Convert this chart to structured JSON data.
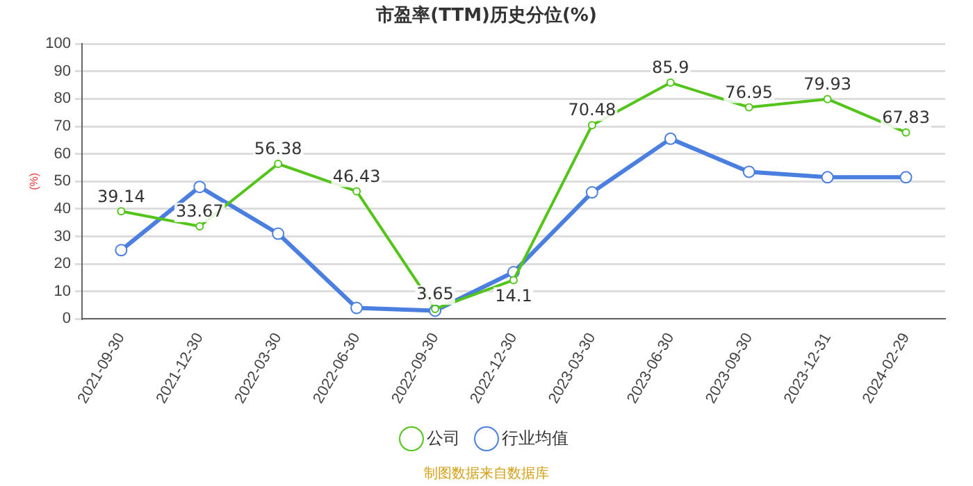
{
  "chart_data": {
    "type": "line",
    "title": "市盈率(TTM)历史分位(%)",
    "ylabel": "(%)",
    "categories": [
      "2021-09-30",
      "2021-12-30",
      "2022-03-30",
      "2022-06-30",
      "2022-09-30",
      "2022-12-30",
      "2023-03-30",
      "2023-06-30",
      "2023-09-30",
      "2023-12-31",
      "2024-02-29"
    ],
    "series": [
      {
        "name": "公司",
        "color": "#52c41a",
        "values": [
          39.14,
          33.67,
          56.38,
          46.43,
          3.65,
          14.1,
          70.48,
          85.9,
          76.95,
          79.93,
          67.83
        ],
        "value_labels": [
          "39.14",
          "33.67",
          "56.38",
          "46.43",
          "3.65",
          "14.1",
          "70.48",
          "85.9",
          "76.95",
          "79.93",
          "67.83"
        ]
      },
      {
        "name": "行业均值",
        "color": "#4a7fe0",
        "values": [
          25,
          48,
          31,
          4,
          3,
          17,
          46,
          65.5,
          53.5,
          51.5,
          51.5
        ]
      }
    ],
    "ylim": [
      0,
      100
    ],
    "yticks": [
      0,
      10,
      20,
      30,
      40,
      50,
      60,
      70,
      80,
      90,
      100
    ],
    "grid": "y",
    "legend": "bottom",
    "marker": "circle",
    "line_style": "solid",
    "annotations": [
      "制图数据来自数据库"
    ]
  }
}
